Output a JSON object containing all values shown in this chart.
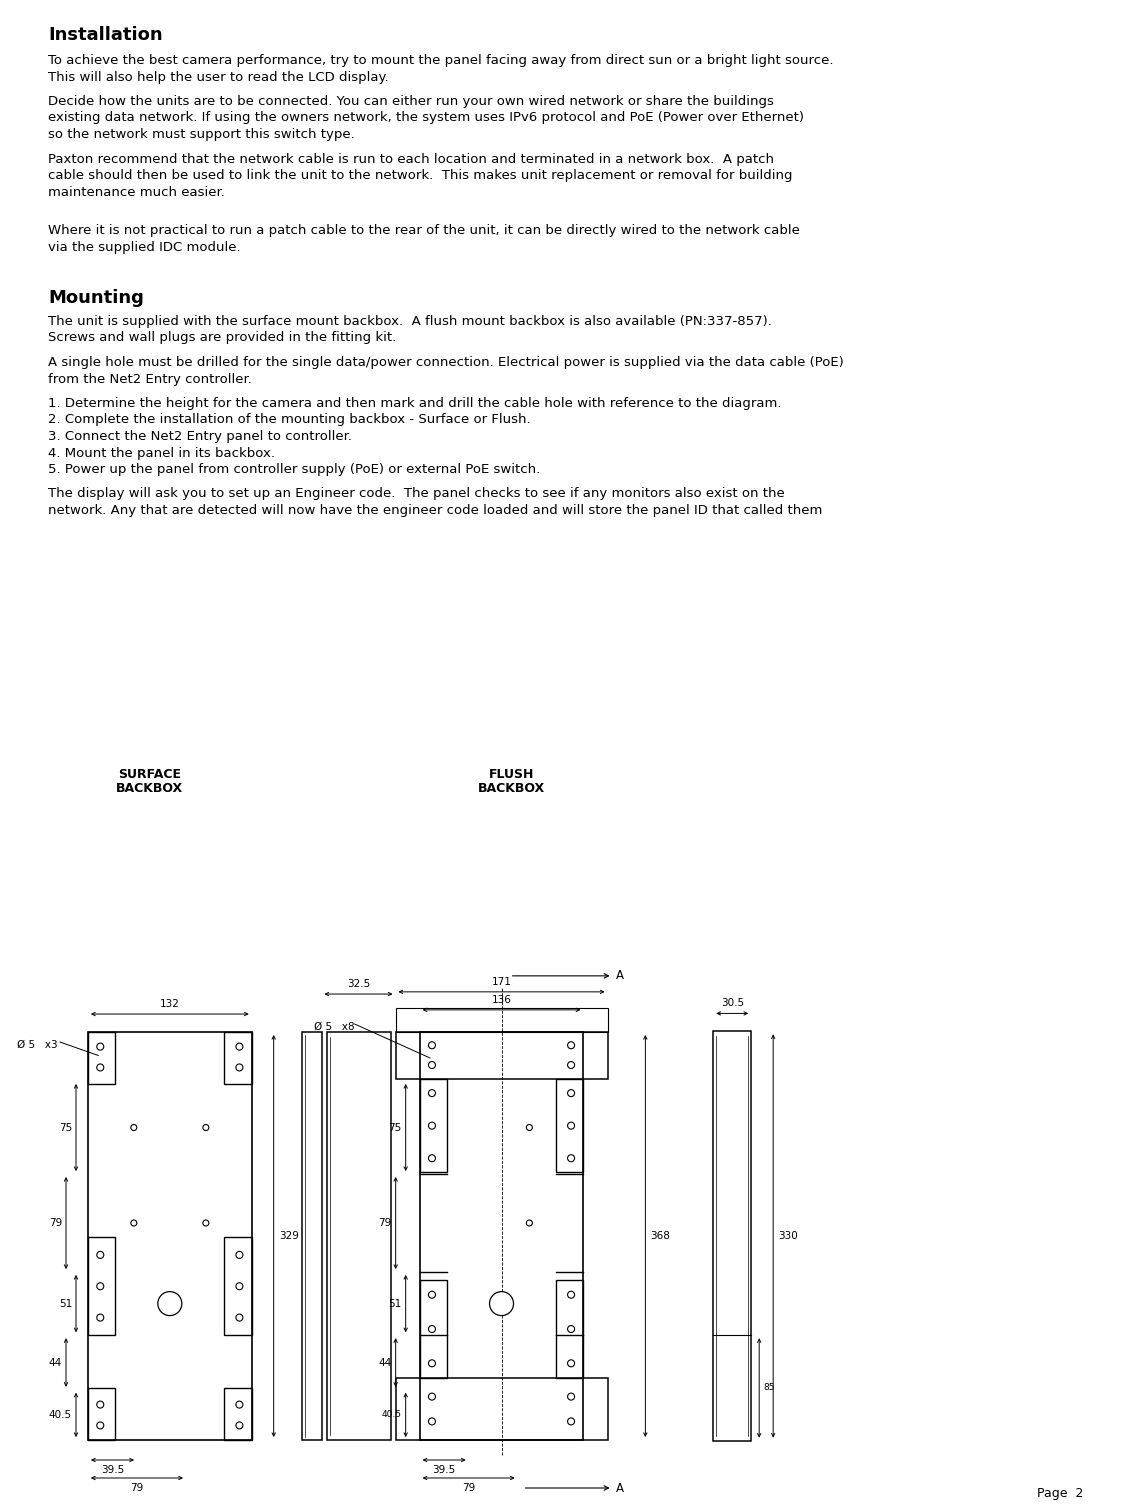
{
  "title": "Installation",
  "section2_title": "Mounting",
  "para1": "To achieve the best camera performance, try to mount the panel facing away from direct sun or a bright light source.\nThis will also help the user to read the LCD display.",
  "para2": "Decide how the units are to be connected. You can either run your own wired network or share the buildings\nexisting data network. If using the owners network, the system uses IPv6 protocol and PoE (Power over Ethernet)\nso the network must support this switch type.",
  "para3": "Paxton recommend that the network cable is run to each location and terminated in a network box.  A patch\ncable should then be used to link the unit to the network.  This makes unit replacement or removal for building\nmaintenance much easier.",
  "para4": "Where it is not practical to run a patch cable to the rear of the unit, it can be directly wired to the network cable\nvia the supplied IDC module.",
  "para5": "The unit is supplied with the surface mount backbox.  A flush mount backbox is also available (PN:337-857).\nScrews and wall plugs are provided in the fitting kit.",
  "para6": "A single hole must be drilled for the single data/power connection. Electrical power is supplied via the data cable (PoE)\nfrom the Net2 Entry controller.",
  "para7_lines": [
    "1. Determine the height for the camera and then mark and drill the cable hole with reference to the diagram.",
    "2. Complete the installation of the mounting backbox - Surface or Flush.",
    "3. Connect the Net2 Entry panel to controller.",
    "4. Mount the panel in its backbox.",
    "5. Power up the panel from controller supply (PoE) or external PoE switch."
  ],
  "para8": "The display will ask you to set up an Engineer code.  The panel checks to see if any monitors also exist on the\nnetwork. Any that are detected will now have the engineer code loaded and will store the panel ID that called them",
  "page_number": "Page  2",
  "bg_color": "#ffffff",
  "text_color": "#000000",
  "title_font_size": 13,
  "body_font_size": 9.5,
  "surface_label_line1": "SURFACE",
  "surface_label_line2": "BACKBOX",
  "flush_label_line1": "FLUSH",
  "flush_label_line2": "BACKBOX",
  "label_A": "A",
  "label_phi5_x3": "Ø 5   x3",
  "label_phi5_x8": "Ø 5   x8",
  "dim_132": "132",
  "dim_329": "329",
  "dim_39_5": "39.5",
  "dim_79": "79",
  "dim_40_5": "40.5",
  "dim_44": "44",
  "dim_51": "51",
  "dim_75": "75",
  "dim_32_5": "32.5",
  "dim_136": "136",
  "dim_171": "171",
  "dim_368": "368",
  "dim_30_5": "30.5",
  "dim_330": "330",
  "dim_85": "85"
}
